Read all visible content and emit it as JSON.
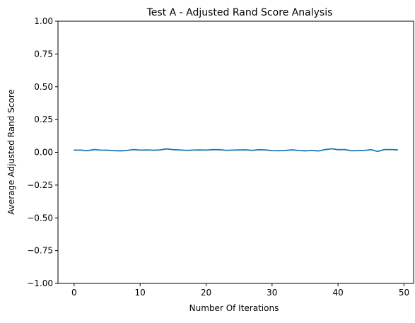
{
  "chart_data": {
    "type": "line",
    "title": "Test A - Adjusted Rand Score Analysis",
    "xlabel": "Number Of Iterations",
    "ylabel": "Average Adjusted Rand Score",
    "xlim": [
      -2.45,
      51.45
    ],
    "ylim": [
      -1.0,
      1.0
    ],
    "x_ticks": [
      0,
      10,
      20,
      30,
      40,
      50
    ],
    "y_ticks": [
      -1.0,
      -0.75,
      -0.5,
      -0.25,
      0.0,
      0.25,
      0.5,
      0.75,
      1.0
    ],
    "x_tick_labels": [
      "0",
      "10",
      "20",
      "30",
      "40",
      "50"
    ],
    "y_tick_labels": [
      "−1.00",
      "−0.75",
      "−0.50",
      "−0.25",
      "0.00",
      "0.25",
      "0.50",
      "0.75",
      "1.00"
    ],
    "grid": false,
    "series": [
      {
        "color": "#1f77b4",
        "x": [
          0,
          1,
          2,
          3,
          4,
          5,
          6,
          7,
          8,
          9,
          10,
          11,
          12,
          13,
          14,
          15,
          16,
          17,
          18,
          19,
          20,
          21,
          22,
          23,
          24,
          25,
          26,
          27,
          28,
          29,
          30,
          31,
          32,
          33,
          34,
          35,
          36,
          37,
          38,
          39,
          40,
          41,
          42,
          43,
          44,
          45,
          46,
          47,
          48,
          49
        ],
        "values": [
          0.017,
          0.017,
          0.012,
          0.021,
          0.017,
          0.016,
          0.013,
          0.011,
          0.014,
          0.021,
          0.017,
          0.018,
          0.016,
          0.018,
          0.026,
          0.02,
          0.018,
          0.015,
          0.017,
          0.018,
          0.017,
          0.02,
          0.02,
          0.015,
          0.017,
          0.018,
          0.019,
          0.015,
          0.02,
          0.018,
          0.013,
          0.012,
          0.014,
          0.019,
          0.014,
          0.011,
          0.015,
          0.01,
          0.02,
          0.027,
          0.02,
          0.021,
          0.012,
          0.013,
          0.014,
          0.02,
          0.007,
          0.021,
          0.021,
          0.019
        ]
      }
    ]
  }
}
